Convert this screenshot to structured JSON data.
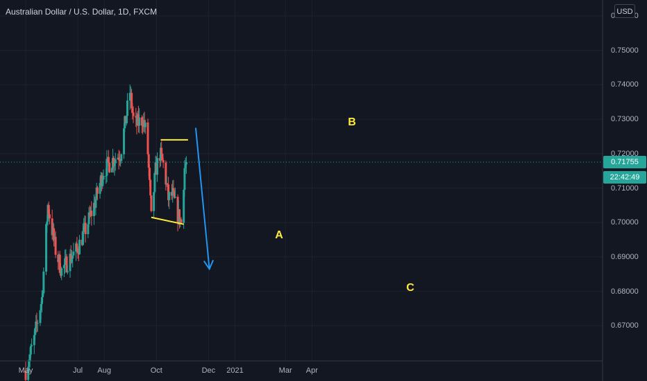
{
  "header": {
    "title": "Australian Dollar / U.S. Dollar, 1D, FXCM"
  },
  "price_scale": {
    "currency": "USD",
    "last_price": "0.71755",
    "countdown": "22:42:49"
  },
  "colors": {
    "up": "#26a69a",
    "down": "#ef5350",
    "annotation": "#ffeb3b",
    "arrow": "#2196f3",
    "background": "#131722"
  },
  "annotations": {
    "a": "A",
    "b": "B",
    "c": "C"
  },
  "chart_data": {
    "type": "candlestick",
    "title": "Australian Dollar / U.S. Dollar, 1D, FXCM",
    "y_ticks": [
      "0.76000",
      "0.75000",
      "0.74000",
      "0.73000",
      "0.72000",
      "0.71000",
      "0.70000",
      "0.69000",
      "0.68000",
      "0.67000"
    ],
    "x_ticks": [
      "May",
      "Jul",
      "Aug",
      "Oct",
      "Dec",
      "2021",
      "Mar",
      "Apr"
    ],
    "ylim": [
      0.6612,
      0.7613
    ],
    "last_price": 0.71755,
    "close_path": [
      {
        "date": "2020-05-01",
        "close": 0.657
      },
      {
        "date": "2020-05-10",
        "close": 0.665
      },
      {
        "date": "2020-05-20",
        "close": 0.678
      },
      {
        "date": "2020-05-27",
        "close": 0.705
      },
      {
        "date": "2020-06-05",
        "close": 0.692
      },
      {
        "date": "2020-06-12",
        "close": 0.686
      },
      {
        "date": "2020-06-20",
        "close": 0.689
      },
      {
        "date": "2020-06-30",
        "close": 0.692
      },
      {
        "date": "2020-07-10",
        "close": 0.698
      },
      {
        "date": "2020-07-20",
        "close": 0.705
      },
      {
        "date": "2020-07-31",
        "close": 0.715
      },
      {
        "date": "2020-08-10",
        "close": 0.718
      },
      {
        "date": "2020-08-20",
        "close": 0.72
      },
      {
        "date": "2020-08-31",
        "close": 0.738
      },
      {
        "date": "2020-09-05",
        "close": 0.728
      },
      {
        "date": "2020-09-15",
        "close": 0.73
      },
      {
        "date": "2020-09-20",
        "close": 0.725
      },
      {
        "date": "2020-09-25",
        "close": 0.701
      },
      {
        "date": "2020-09-30",
        "close": 0.715
      },
      {
        "date": "2020-10-05",
        "close": 0.72
      },
      {
        "date": "2020-10-10",
        "close": 0.716
      },
      {
        "date": "2020-10-15",
        "close": 0.707
      },
      {
        "date": "2020-10-20",
        "close": 0.708
      },
      {
        "date": "2020-10-25",
        "close": 0.703
      },
      {
        "date": "2020-10-30",
        "close": 0.7
      },
      {
        "date": "2020-11-03",
        "close": 0.716
      },
      {
        "date": "2020-11-05",
        "close": 0.71755
      }
    ],
    "drawings": [
      {
        "type": "line",
        "label": "A",
        "from": {
          "date": "2020-09-25",
          "value": 0.7015
        },
        "to": {
          "date": "2020-11-02",
          "value": 0.6995
        }
      },
      {
        "type": "line",
        "label": "B",
        "from": {
          "date": "2020-10-06",
          "value": 0.724
        },
        "to": {
          "date": "2020-11-07",
          "value": 0.724
        }
      },
      {
        "type": "arrow",
        "label": "C",
        "from": {
          "date": "2020-11-16",
          "value": 0.7275
        },
        "to": {
          "date": "2020-12-02",
          "value": 0.6865
        }
      }
    ]
  }
}
